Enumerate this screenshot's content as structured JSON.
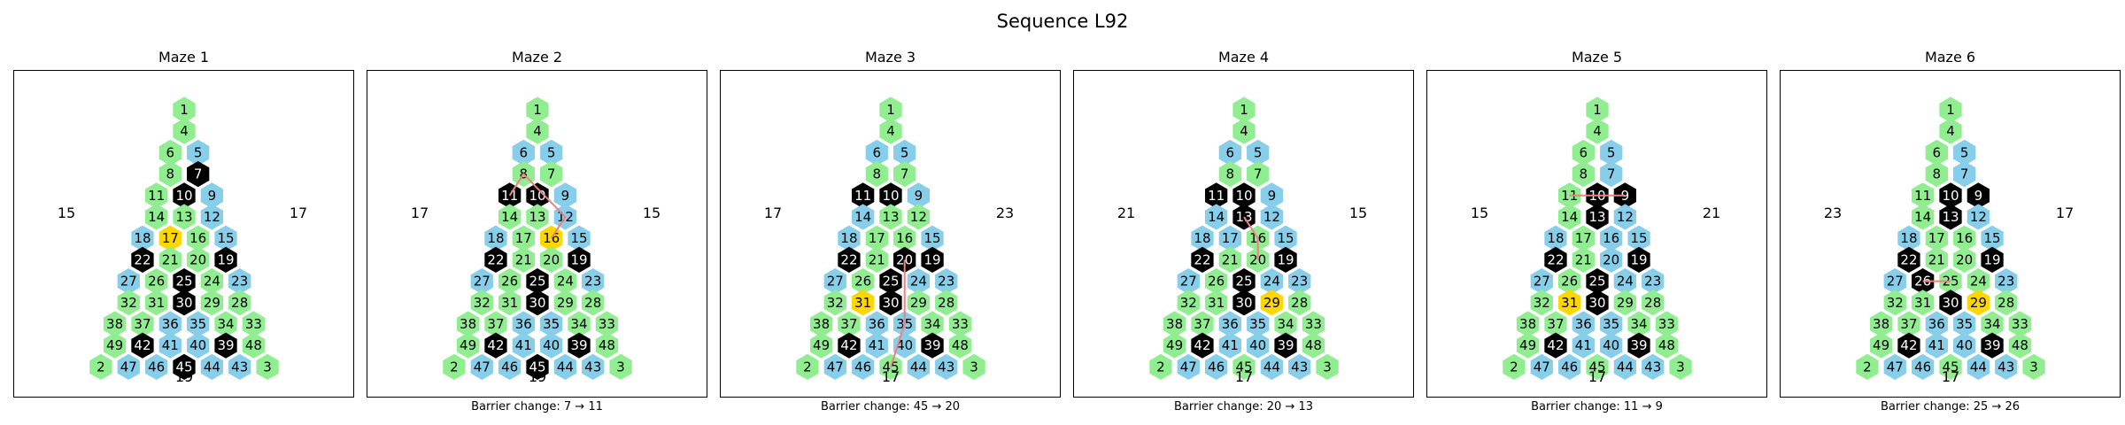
{
  "title": "Sequence L92",
  "colors": {
    "green": "#90EE90",
    "blue": "#87CEEB",
    "black": "#000000",
    "gold": "#FFD700",
    "path": "#F08080"
  },
  "mazes": [
    {
      "title": "Maze 1",
      "left": "15",
      "right": "17",
      "bottom": "19",
      "caption": "",
      "blue": [
        5,
        9,
        12,
        15,
        18,
        23,
        27,
        35,
        36,
        40,
        41,
        43,
        44,
        46,
        47
      ],
      "black": [
        7,
        10,
        19,
        22,
        25,
        30,
        39,
        42,
        45
      ],
      "gold": [
        17
      ],
      "path": []
    },
    {
      "title": "Maze 2",
      "left": "17",
      "right": "15",
      "bottom": "19",
      "caption": "Barrier change: 7 → 11",
      "blue": [
        5,
        6,
        9,
        12,
        15,
        18,
        23,
        27,
        35,
        36,
        40,
        41,
        43,
        44,
        46,
        47
      ],
      "black": [
        10,
        11,
        19,
        22,
        25,
        30,
        39,
        42,
        45
      ],
      "gold": [
        16
      ],
      "path": [
        16,
        12,
        8,
        11
      ]
    },
    {
      "title": "Maze 3",
      "left": "17",
      "right": "23",
      "bottom": "17",
      "caption": "Barrier change: 45 → 20",
      "blue": [
        5,
        6,
        9,
        14,
        15,
        18,
        23,
        24,
        27,
        35,
        36,
        40,
        41,
        43,
        44,
        46,
        47
      ],
      "black": [
        10,
        11,
        19,
        20,
        22,
        25,
        30,
        39,
        42
      ],
      "gold": [
        31
      ],
      "path": [
        45,
        35,
        20
      ]
    },
    {
      "title": "Maze 4",
      "left": "21",
      "right": "15",
      "bottom": "17",
      "caption": "Barrier change: 20 → 13",
      "blue": [
        5,
        6,
        9,
        12,
        14,
        15,
        17,
        18,
        23,
        24,
        27,
        35,
        36,
        40,
        41,
        43,
        44,
        46,
        47
      ],
      "black": [
        10,
        11,
        13,
        19,
        22,
        25,
        30,
        39,
        42
      ],
      "gold": [
        29
      ],
      "path": [
        13,
        16,
        20
      ]
    },
    {
      "title": "Maze 5",
      "left": "15",
      "right": "21",
      "bottom": "17",
      "caption": "Barrier change: 11 → 9",
      "blue": [
        5,
        7,
        12,
        15,
        16,
        18,
        20,
        23,
        24,
        27,
        35,
        36,
        40,
        41,
        43,
        44,
        46,
        47
      ],
      "black": [
        9,
        10,
        13,
        19,
        22,
        25,
        30,
        39,
        42
      ],
      "gold": [
        31
      ],
      "path": [
        11,
        10,
        9
      ]
    },
    {
      "title": "Maze 6",
      "left": "23",
      "right": "17",
      "bottom": "17",
      "caption": "Barrier change: 25 → 26",
      "blue": [
        5,
        7,
        12,
        15,
        18,
        23,
        27,
        35,
        36,
        40,
        41,
        43,
        44,
        46,
        47
      ],
      "black": [
        9,
        10,
        13,
        19,
        22,
        26,
        30,
        39,
        42
      ],
      "gold": [
        29
      ],
      "path": [
        26,
        25
      ]
    }
  ]
}
